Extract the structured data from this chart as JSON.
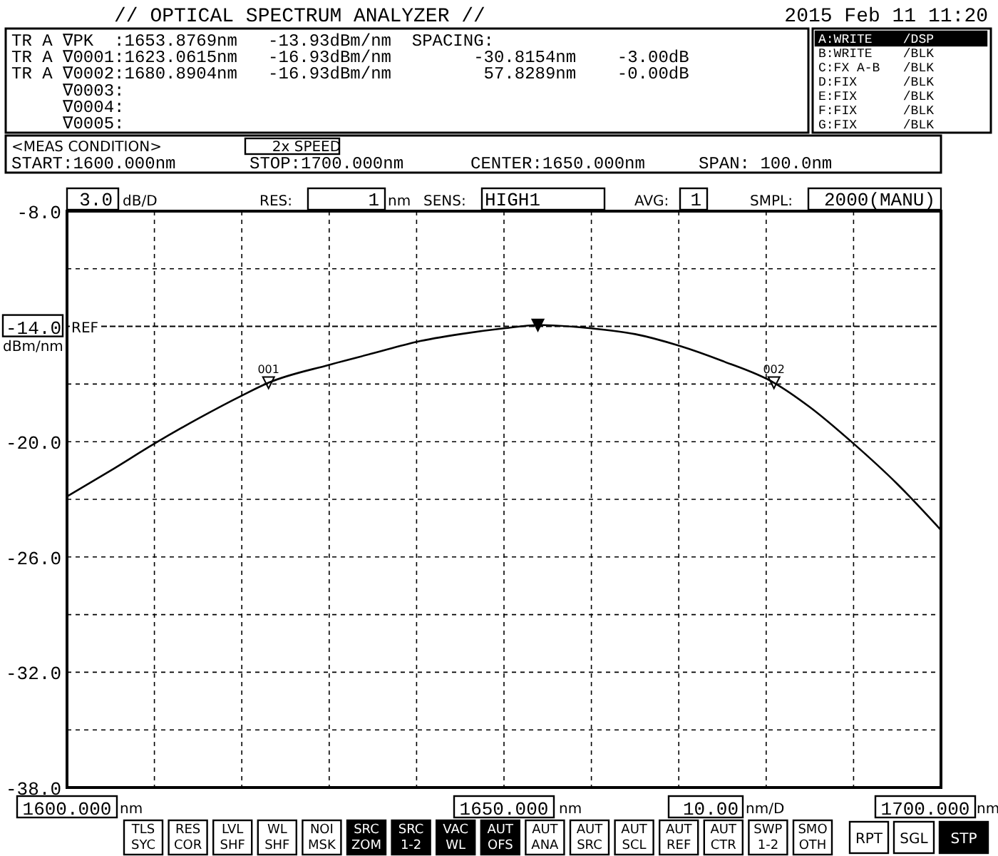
{
  "chart_data": {
    "type": "line",
    "title": "// OPTICAL SPECTRUM ANALYZER //",
    "ylabel": "dBm/nm",
    "x": [
      1600,
      1605,
      1610,
      1615,
      1620,
      1623.0615,
      1630,
      1635,
      1640,
      1645,
      1650,
      1653.8769,
      1660,
      1665,
      1670,
      1675,
      1680.8904,
      1685,
      1690,
      1695,
      1700
    ],
    "series": [
      {
        "color": "#000000",
        "values": [
          -22.85,
          -21.5,
          -20.1,
          -18.8,
          -17.6,
          -16.93,
          -16.0,
          -15.4,
          -14.8,
          -14.4,
          -14.1,
          -13.93,
          -14.1,
          -14.4,
          -15.0,
          -15.8,
          -16.93,
          -18.2,
          -20.1,
          -22.2,
          -24.6
        ]
      },
      {
        "type": "scatter",
        "color": "#000000",
        "marker": "triangle",
        "x": [
          1653.8769
        ],
        "values": [
          -13.93
        ]
      }
    ],
    "xlim": [
      1600,
      1700
    ],
    "xticks": [
      {
        "value": 1600,
        "label": "1600.000"
      },
      {
        "value": 1610,
        "label": null
      },
      {
        "value": 1620,
        "label": null
      },
      {
        "value": 1630,
        "label": null
      },
      {
        "value": 1640,
        "label": null
      },
      {
        "value": 1650,
        "label": "1650.000"
      },
      {
        "value": 1660,
        "label": null
      },
      {
        "value": 1670,
        "label": null
      },
      {
        "value": 1680,
        "label": null
      },
      {
        "value": 1690,
        "label": null
      },
      {
        "value": 1700,
        "label": "1700.000"
      }
    ],
    "ylim": [
      -38,
      -8
    ],
    "yticks": [
      {
        "value": -8,
        "label": "-8.0"
      },
      {
        "value": -11,
        "label": null
      },
      {
        "value": -14,
        "label": "-14.0"
      },
      {
        "value": -17,
        "label": null
      },
      {
        "value": -20,
        "label": "-20.0"
      },
      {
        "value": -23,
        "label": null
      },
      {
        "value": -26,
        "label": "-26.0"
      },
      {
        "value": -29,
        "label": null
      },
      {
        "value": -32,
        "label": "-32.0"
      },
      {
        "value": -35,
        "label": null
      },
      {
        "value": -38,
        "label": "-38.0"
      }
    ],
    "grid": true,
    "line_style": "solid",
    "marker": "none",
    "ref_lines": [
      {
        "axis": "y",
        "value": -14,
        "label": "REF"
      }
    ],
    "annotations": [
      "2015 Feb 11 11:20",
      "TR A ∇PK  :1653.8769nm   -13.93dBm/nm  SPACING:",
      "TR A ∇0001:1623.0615nm   -16.93dBm/nm        -30.8154nm    -3.00dB",
      "TR A ∇0002:1680.8904nm   -16.93dBm/nm         57.8289nm    -0.00dB",
      "     ∇0003:",
      "     ∇0004:",
      "     ∇0005:",
      "A:WRITE    /DSP",
      "B:WRITE    /BLK",
      "C:FX A-B   /BLK",
      "D:FIX      /BLK",
      "E:FIX      /BLK",
      "F:FIX      /BLK",
      "G:FIX      /BLK",
      "<MEAS CONDITION>",
      "2x SPEED",
      "START:1600.000nm",
      "STOP:1700.000nm",
      "CENTER:1650.000nm",
      "SPAN: 100.0nm",
      "3.0",
      "dB/D",
      "RES:",
      "1",
      "nm",
      "SENS:",
      "HIGH1",
      "AVG:",
      "1",
      "SMPL:",
      "2000(MANU)",
      "nm",
      "nm",
      "nm",
      "10.00",
      "nm/D",
      "TLS",
      "SYC",
      "RES",
      "COR",
      "LVL",
      "SHF",
      "WL",
      "SHF",
      "NOI",
      "MSK",
      "SRC",
      "ZOM",
      "SRC",
      "1-2",
      "VAC",
      "WL",
      "AUT",
      "OFS",
      "AUT",
      "ANA",
      "AUT",
      "SRC",
      "AUT",
      "SCL",
      "AUT",
      "REF",
      "AUT",
      "CTR",
      "SWP",
      "1-2",
      "SMO",
      "OTH",
      "RPT",
      "SGL",
      "STP",
      {
        "text": "001",
        "x": 1623.0615,
        "y": -16.93
      },
      {
        "text": "002",
        "x": 1680.8904,
        "y": -16.93
      }
    ]
  }
}
